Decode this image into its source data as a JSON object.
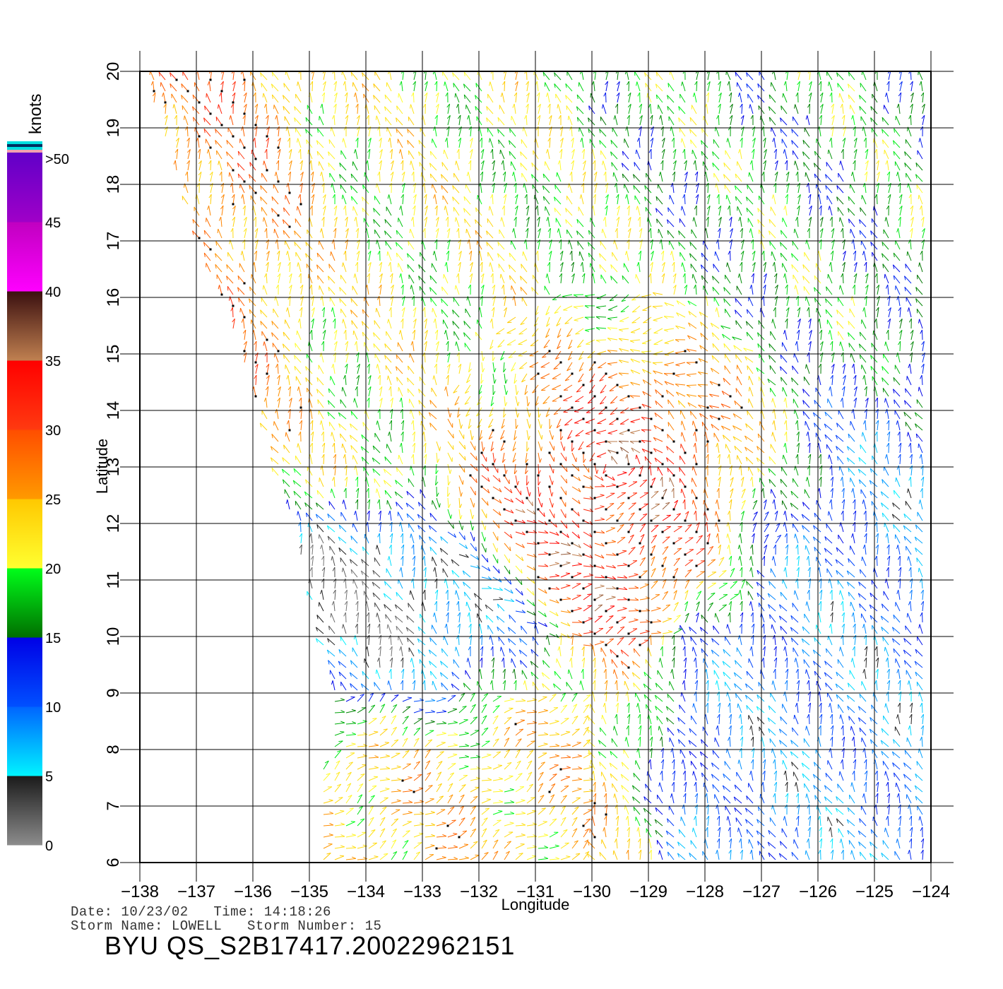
{
  "chart_data": {
    "type": "wind_vector_map",
    "xlabel": "Longitude",
    "ylabel": "Latitude",
    "xlim": [
      -138,
      -124
    ],
    "ylim": [
      6,
      20
    ],
    "x_ticks": [
      -138,
      -137,
      -136,
      -135,
      -134,
      -133,
      -132,
      -131,
      -130,
      -129,
      -128,
      -127,
      -126,
      -125,
      -124
    ],
    "y_ticks": [
      6,
      7,
      8,
      9,
      10,
      11,
      12,
      13,
      14,
      15,
      16,
      17,
      18,
      19,
      20
    ],
    "grid": true,
    "colorbar": {
      "units": "knots",
      "tick_labels": [
        "0",
        "5",
        "10",
        "15",
        "20",
        "25",
        "30",
        "35",
        "40",
        "45",
        ">50"
      ],
      "segments": [
        {
          "from": 0,
          "to": 5,
          "colors": [
            "#8c8c8c",
            "#1a1a1a"
          ]
        },
        {
          "from": 5,
          "to": 10,
          "colors": [
            "#00f4ff",
            "#0064ff"
          ]
        },
        {
          "from": 10,
          "to": 15,
          "colors": [
            "#0050ff",
            "#0000e6"
          ]
        },
        {
          "from": 15,
          "to": 20,
          "colors": [
            "#006e00",
            "#00ff1a"
          ]
        },
        {
          "from": 20,
          "to": 25,
          "colors": [
            "#ffff30",
            "#ffc800"
          ]
        },
        {
          "from": 25,
          "to": 30,
          "colors": [
            "#ff9a00",
            "#ff4d00"
          ]
        },
        {
          "from": 30,
          "to": 35,
          "colors": [
            "#ff3a10",
            "#ff0000"
          ]
        },
        {
          "from": 35,
          "to": 40,
          "colors": [
            "#c08050",
            "#3a0f0f"
          ]
        },
        {
          "from": 40,
          "to": 45,
          "colors": [
            "#ff00ff",
            "#c000c0"
          ]
        },
        {
          "from": 45,
          "to": 50,
          "colors": [
            "#a000c8",
            "#6000c8"
          ]
        }
      ],
      "top_caps": [
        "#f0a0b0",
        "#00e0e0",
        "#003060",
        "#00e0e0"
      ]
    },
    "swath_edge": [
      [
        -138,
        20
      ],
      [
        -136,
        14.3
      ],
      [
        -135.3,
        12
      ],
      [
        -134.7,
        9.5
      ],
      [
        -134.8,
        6
      ]
    ],
    "wind_regions": [
      {
        "lon": [
          -138,
          -135.5
        ],
        "lat": [
          15,
          20
        ],
        "speed_knots": 28,
        "direction": "NE"
      },
      {
        "lon": [
          -135,
          -130
        ],
        "lat": [
          14,
          20
        ],
        "speed_knots": 21,
        "direction": "NE"
      },
      {
        "lon": [
          -130,
          -124
        ],
        "lat": [
          15,
          20
        ],
        "speed_knots": 17,
        "direction": "NE"
      },
      {
        "lon": [
          -131,
          -127.5
        ],
        "lat": [
          11,
          14.8
        ],
        "speed_knots": 33,
        "direction": "cyclonic"
      },
      {
        "lon": [
          -127.5,
          -124
        ],
        "lat": [
          6,
          13
        ],
        "speed_knots": 9,
        "direction": "variable"
      },
      {
        "lon": [
          -134.5,
          -132
        ],
        "lat": [
          9,
          11
        ],
        "speed_knots": 3,
        "direction": "variable"
      },
      {
        "lon": [
          -134.5,
          -130.5
        ],
        "lat": [
          6,
          8.8
        ],
        "speed_knots": 24,
        "direction": "SW"
      }
    ]
  },
  "info": {
    "line1": "Date: 10/23/02   Time: 14:18:26",
    "line2": "Storm Name: LOWELL   Storm Number: 15",
    "product_id": "BYU QS_S2B17417.20022962151"
  }
}
